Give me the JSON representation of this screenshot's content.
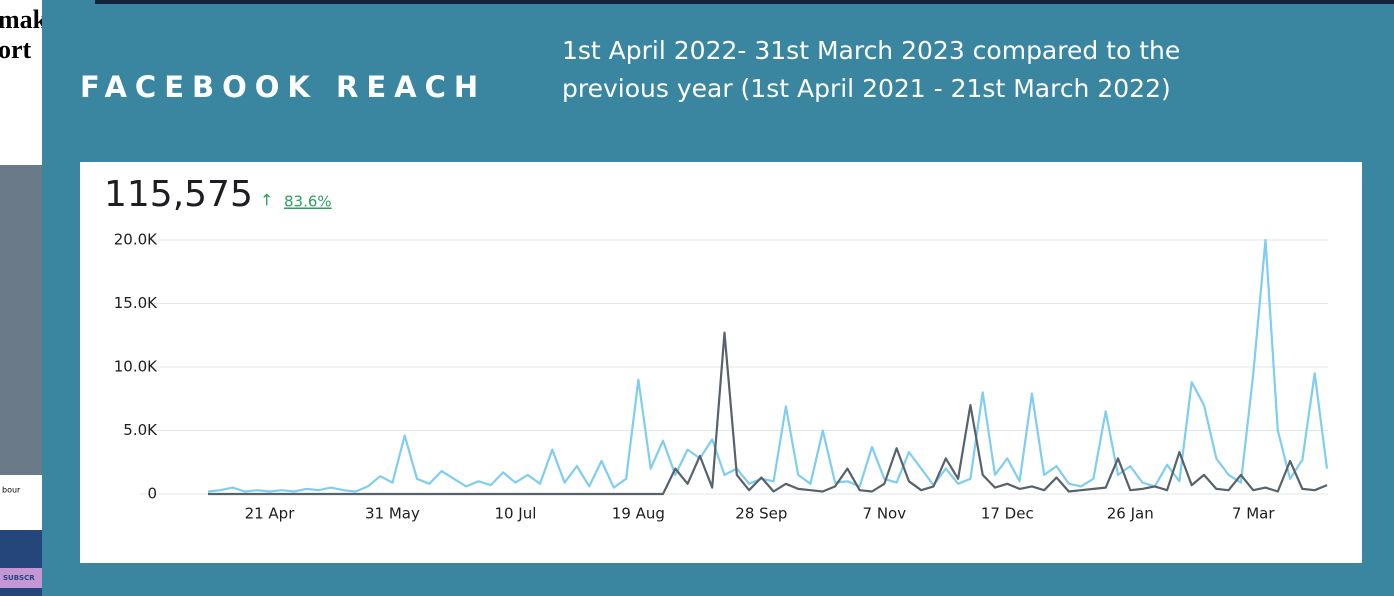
{
  "slide": {
    "title": "FACEBOOK REACH",
    "subtitle": [
      "1st April 2022- 31st March 2023 compared to the",
      "previous year (1st April 2021 - 21st March 2022)"
    ],
    "side_fragments": [
      "mak",
      "ort",
      "bour",
      "SUBSCR"
    ]
  },
  "chart_data": {
    "type": "line",
    "headline": "115,575",
    "change": "83.6%",
    "categories": [
      null,
      null,
      null,
      null,
      null,
      "21 Apr",
      null,
      null,
      null,
      null,
      null,
      null,
      null,
      null,
      null,
      "31 May",
      null,
      null,
      null,
      null,
      null,
      null,
      null,
      null,
      null,
      "10 Jul",
      null,
      null,
      null,
      null,
      null,
      null,
      null,
      null,
      null,
      "19 Aug",
      null,
      null,
      null,
      null,
      null,
      null,
      null,
      null,
      null,
      "28 Sep",
      null,
      null,
      null,
      null,
      null,
      null,
      null,
      null,
      null,
      "7 Nov",
      null,
      null,
      null,
      null,
      null,
      null,
      null,
      null,
      null,
      "17 Dec",
      null,
      null,
      null,
      null,
      null,
      null,
      null,
      null,
      null,
      "26 Jan",
      null,
      null,
      null,
      null,
      null,
      null,
      null,
      null,
      null,
      "7 Mar",
      null,
      null,
      null,
      null,
      null,
      null
    ],
    "series": [
      {
        "color": "#7fcdf0",
        "values": [
          200,
          300,
          500,
          200,
          300,
          200,
          300,
          200,
          400,
          300,
          500,
          300,
          200,
          600,
          1400,
          900,
          4600,
          1200,
          800,
          1800,
          1200,
          600,
          1000,
          700,
          1700,
          900,
          1500,
          800,
          3500,
          900,
          2200,
          600,
          2600,
          500,
          1200,
          9000,
          2000,
          4200,
          1500,
          3500,
          2800,
          4300,
          1500,
          2000,
          800,
          1200,
          1000,
          6900,
          1500,
          800,
          5000,
          900,
          1000,
          600,
          3700,
          1200,
          900,
          3300,
          2000,
          700,
          2000,
          800,
          1200,
          8000,
          1500,
          2800,
          1000,
          7900,
          1500,
          2200,
          800,
          600,
          1200,
          6500,
          1500,
          2200,
          900,
          600,
          2300,
          1000,
          8800,
          7000,
          2800,
          1500,
          900,
          9400,
          20000,
          5000,
          1200,
          2700,
          9500,
          2000
        ]
      },
      {
        "color": "#58626a",
        "values": [
          0,
          0,
          0,
          0,
          0,
          0,
          0,
          0,
          0,
          0,
          0,
          0,
          0,
          0,
          0,
          0,
          0,
          0,
          0,
          0,
          0,
          0,
          0,
          0,
          0,
          0,
          0,
          0,
          0,
          0,
          0,
          0,
          0,
          0,
          0,
          0,
          0,
          0,
          2000,
          800,
          3000,
          500,
          12700,
          1500,
          300,
          1300,
          200,
          800,
          400,
          300,
          200,
          600,
          2000,
          300,
          200,
          800,
          3600,
          1000,
          300,
          600,
          2800,
          1200,
          7000,
          1500,
          500,
          800,
          400,
          600,
          300,
          1300,
          200,
          300,
          400,
          500,
          2800,
          300,
          400,
          600,
          300,
          3300,
          700,
          1500,
          400,
          300,
          1500,
          300,
          500,
          200,
          2600,
          400,
          300,
          700
        ]
      }
    ],
    "ylim": [
      0,
      20000
    ],
    "yticks": [
      0,
      {
        "value": 5000,
        "label": "5.0K"
      },
      {
        "value": 10000,
        "label": "10.0K"
      },
      {
        "value": 15000,
        "label": "15.0K"
      },
      {
        "value": 20000,
        "label": "20.0K"
      }
    ],
    "grid": true
  }
}
